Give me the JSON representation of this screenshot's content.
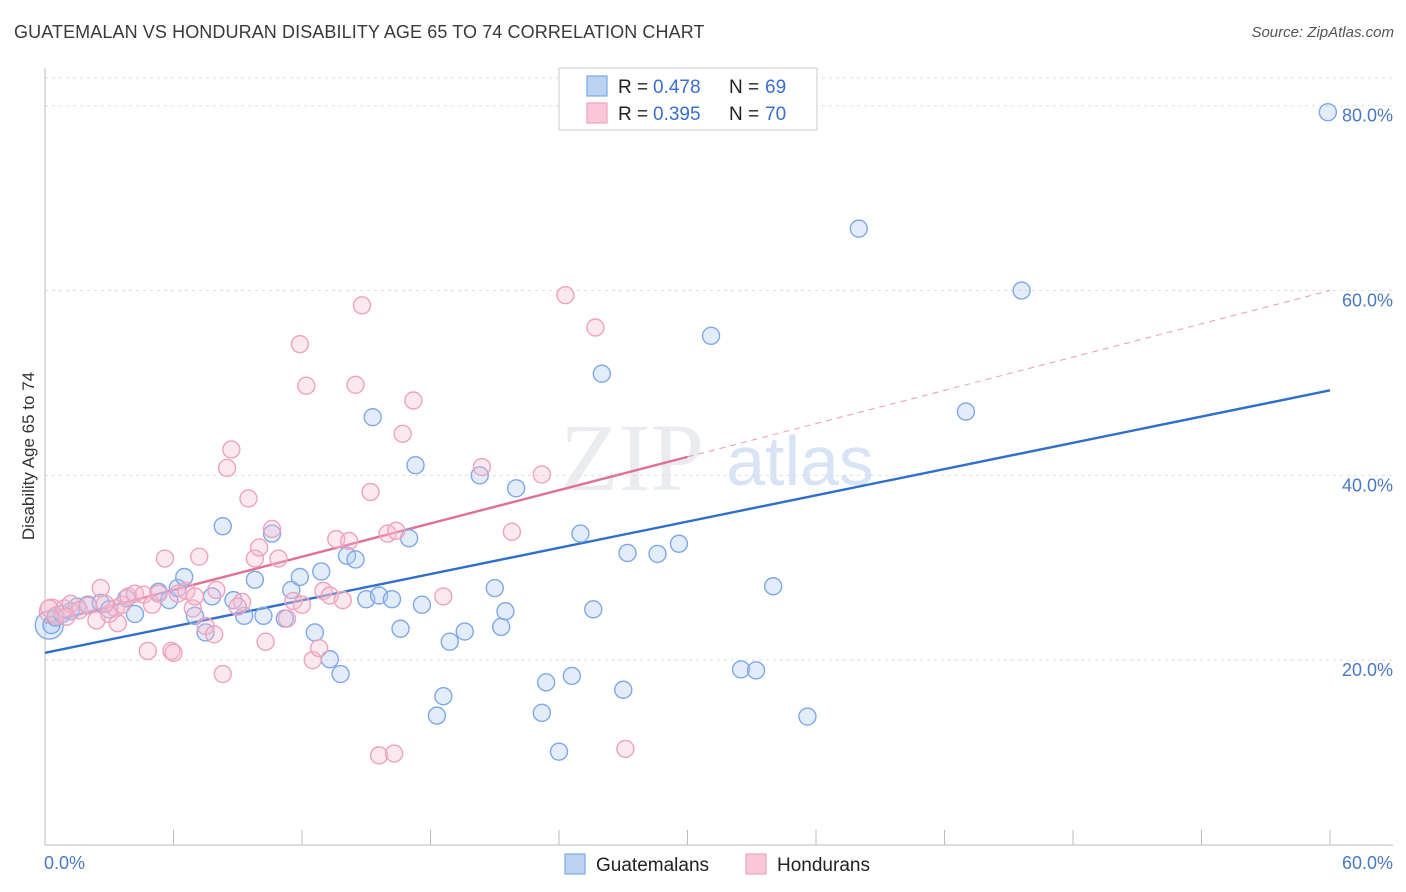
{
  "title": "GUATEMALAN VS HONDURAN DISABILITY AGE 65 TO 74 CORRELATION CHART",
  "source": "Source: ZipAtlas.com",
  "watermark": {
    "zip": "ZIP",
    "atlas": "atlas"
  },
  "legend": {
    "r_label": "R =",
    "n_label": "N =",
    "entries": [
      {
        "name": "Guatemalans",
        "r": "0.478",
        "n": "69"
      },
      {
        "name": "Hondurans",
        "r": "0.395",
        "n": "70"
      }
    ]
  },
  "chart_data": {
    "type": "scatter",
    "title": "GUATEMALAN VS HONDURAN DISABILITY AGE 65 TO 74 CORRELATION CHART",
    "xlabel": "",
    "ylabel": "Disability Age 65 to 74",
    "xlim": [
      0,
      60
    ],
    "ylim": [
      0,
      83
    ],
    "x_tick_labels": [
      "0.0%",
      "60.0%"
    ],
    "y_ticks": [
      20,
      40,
      60,
      80
    ],
    "y_tick_labels": [
      "20.0%",
      "40.0%",
      "60.0%",
      "80.0%"
    ],
    "grid": true,
    "colors": {
      "Guatemalans": "#7fa8e6",
      "Hondurans": "#eea3bd",
      "blue_line": "#2f6fcb",
      "pink_line": "#e07096"
    },
    "series": [
      {
        "name": "Guatemalans",
        "points": [
          [
            0.3,
            23.8
          ],
          [
            0.5,
            24.6
          ],
          [
            0.8,
            25.0
          ],
          [
            1.2,
            25.3
          ],
          [
            1.5,
            25.8
          ],
          [
            2.0,
            26.0
          ],
          [
            2.6,
            26.2
          ],
          [
            3.0,
            25.5
          ],
          [
            3.8,
            26.7
          ],
          [
            4.2,
            25.0
          ],
          [
            5.3,
            27.4
          ],
          [
            5.8,
            26.5
          ],
          [
            6.2,
            27.8
          ],
          [
            6.5,
            29.0
          ],
          [
            7.0,
            24.8
          ],
          [
            7.5,
            23.0
          ],
          [
            7.8,
            26.9
          ],
          [
            8.3,
            34.5
          ],
          [
            8.8,
            26.5
          ],
          [
            9.3,
            24.8
          ],
          [
            9.8,
            28.7
          ],
          [
            10.2,
            24.8
          ],
          [
            10.6,
            33.7
          ],
          [
            11.2,
            24.5
          ],
          [
            11.5,
            27.6
          ],
          [
            11.9,
            29.0
          ],
          [
            12.6,
            23.0
          ],
          [
            12.9,
            29.6
          ],
          [
            13.3,
            20.1
          ],
          [
            13.8,
            18.5
          ],
          [
            14.1,
            31.3
          ],
          [
            14.5,
            30.9
          ],
          [
            15.0,
            26.6
          ],
          [
            15.3,
            46.3
          ],
          [
            15.6,
            27.0
          ],
          [
            16.2,
            26.6
          ],
          [
            16.6,
            23.4
          ],
          [
            17.0,
            33.2
          ],
          [
            17.3,
            41.1
          ],
          [
            17.6,
            26.0
          ],
          [
            18.6,
            16.1
          ],
          [
            18.3,
            14.0
          ],
          [
            18.9,
            22.0
          ],
          [
            19.6,
            23.1
          ],
          [
            20.3,
            40.0
          ],
          [
            21.0,
            27.8
          ],
          [
            21.3,
            23.6
          ],
          [
            21.5,
            25.3
          ],
          [
            22.0,
            38.6
          ],
          [
            23.2,
            14.3
          ],
          [
            23.4,
            17.6
          ],
          [
            24.0,
            10.1
          ],
          [
            24.6,
            18.3
          ],
          [
            25.0,
            33.7
          ],
          [
            25.6,
            25.5
          ],
          [
            26.0,
            51.0
          ],
          [
            27.0,
            16.8
          ],
          [
            27.2,
            31.6
          ],
          [
            28.6,
            31.5
          ],
          [
            29.6,
            32.6
          ],
          [
            31.1,
            55.1
          ],
          [
            32.5,
            19.0
          ],
          [
            33.2,
            18.9
          ],
          [
            34.0,
            28.0
          ],
          [
            35.6,
            13.9
          ],
          [
            38.0,
            66.7
          ],
          [
            43.0,
            46.9
          ],
          [
            45.6,
            60.0
          ],
          [
            59.9,
            79.3
          ]
        ]
      },
      {
        "name": "Hondurans",
        "points": [
          [
            0.2,
            25.6
          ],
          [
            0.5,
            24.8
          ],
          [
            0.9,
            25.6
          ],
          [
            1.2,
            26.1
          ],
          [
            1.6,
            25.4
          ],
          [
            2.0,
            25.9
          ],
          [
            2.4,
            24.3
          ],
          [
            2.6,
            27.8
          ],
          [
            3.0,
            25.0
          ],
          [
            3.3,
            25.6
          ],
          [
            3.6,
            26.0
          ],
          [
            3.9,
            26.9
          ],
          [
            4.2,
            27.2
          ],
          [
            4.6,
            27.1
          ],
          [
            5.0,
            26.0
          ],
          [
            5.3,
            27.2
          ],
          [
            5.6,
            31.0
          ],
          [
            5.9,
            21.0
          ],
          [
            6.2,
            27.2
          ],
          [
            6.6,
            27.5
          ],
          [
            6.9,
            25.6
          ],
          [
            7.2,
            31.2
          ],
          [
            7.5,
            23.7
          ],
          [
            7.9,
            22.8
          ],
          [
            8.0,
            27.6
          ],
          [
            8.3,
            18.5
          ],
          [
            8.5,
            40.8
          ],
          [
            8.7,
            42.8
          ],
          [
            9.2,
            26.3
          ],
          [
            9.5,
            37.5
          ],
          [
            9.8,
            31.0
          ],
          [
            10.0,
            32.2
          ],
          [
            10.3,
            22.0
          ],
          [
            10.6,
            34.2
          ],
          [
            10.9,
            31.0
          ],
          [
            11.3,
            24.5
          ],
          [
            11.6,
            26.4
          ],
          [
            11.9,
            54.2
          ],
          [
            12.2,
            49.7
          ],
          [
            12.5,
            20.0
          ],
          [
            12.8,
            21.3
          ],
          [
            13.0,
            27.5
          ],
          [
            13.3,
            27.0
          ],
          [
            13.6,
            33.1
          ],
          [
            13.9,
            26.5
          ],
          [
            14.2,
            32.9
          ],
          [
            14.5,
            49.8
          ],
          [
            14.8,
            58.4
          ],
          [
            15.2,
            38.2
          ],
          [
            15.6,
            9.7
          ],
          [
            16.0,
            33.7
          ],
          [
            16.3,
            9.9
          ],
          [
            16.7,
            44.5
          ],
          [
            17.2,
            48.1
          ],
          [
            18.6,
            26.9
          ],
          [
            20.4,
            40.9
          ],
          [
            21.8,
            33.9
          ],
          [
            23.2,
            40.1
          ],
          [
            24.3,
            59.5
          ],
          [
            25.7,
            56.0
          ],
          [
            27.1,
            10.4
          ],
          [
            4.8,
            21.0
          ],
          [
            6.0,
            20.8
          ],
          [
            9.0,
            25.8
          ],
          [
            12.0,
            26.0
          ],
          [
            16.4,
            34.0
          ],
          [
            2.8,
            26.1
          ],
          [
            1.0,
            24.7
          ],
          [
            7.0,
            26.9
          ],
          [
            3.4,
            24.0
          ]
        ]
      }
    ],
    "trend_lines": [
      {
        "series": "Guatemalans",
        "x": [
          0,
          60
        ],
        "y": [
          20.8,
          49.2
        ],
        "style": "solid"
      },
      {
        "series": "Hondurans",
        "x": [
          0,
          30
        ],
        "y": [
          24.0,
          42.0
        ],
        "style": "solid"
      },
      {
        "series": "Hondurans",
        "x": [
          30,
          60
        ],
        "y": [
          42.0,
          60.0
        ],
        "style": "dashed"
      }
    ]
  }
}
